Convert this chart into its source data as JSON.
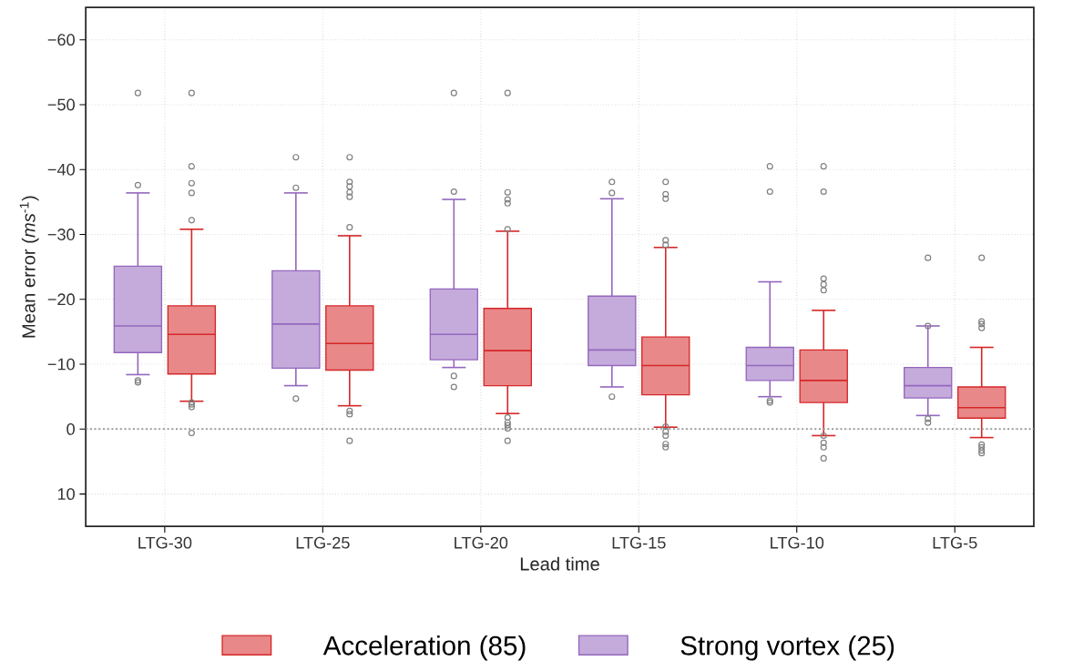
{
  "chart_data": {
    "type": "box",
    "xlabel": "Lead time",
    "ylabel": "Mean error (*ms*$^{-1}$)",
    "categories": [
      "LTG-30",
      "LTG-25",
      "LTG-20",
      "LTG-15",
      "LTG-10",
      "LTG-5"
    ],
    "ylim": [
      15,
      -65
    ],
    "yticks": [
      {
        "value": 10,
        "label": "10"
      },
      {
        "value": 0,
        "label": "0"
      },
      {
        "value": -10,
        "label": "−10"
      },
      {
        "value": -20,
        "label": "−20"
      },
      {
        "value": -30,
        "label": "−30"
      },
      {
        "value": -40,
        "label": "−40"
      },
      {
        "value": -50,
        "label": "−50"
      },
      {
        "value": -60,
        "label": "−60"
      }
    ],
    "grid": true,
    "legend": "bottom",
    "marker": "circle",
    "ref_lines": [
      {
        "axis": "y",
        "value": 0,
        "color": "#999999",
        "line_style": "dotted"
      }
    ],
    "series": [
      {
        "name": "Strong vortex (25)",
        "color": "#9467bd",
        "boxes": [
          {
            "low": -8.4,
            "q1": -11.8,
            "median": -15.9,
            "q3": -25.1,
            "high": -36.4,
            "outliers": [
              -51.8,
              -37.6,
              -7.5,
              -7.2
            ]
          },
          {
            "low": -6.7,
            "q1": -9.4,
            "median": -16.2,
            "q3": -24.4,
            "high": -36.4,
            "outliers": [
              -41.9,
              -37.2,
              -4.7
            ]
          },
          {
            "low": -9.5,
            "q1": -10.7,
            "median": -14.6,
            "q3": -21.6,
            "high": -35.4,
            "outliers": [
              -51.8,
              -36.6,
              -8.2,
              -6.5
            ]
          },
          {
            "low": -6.5,
            "q1": -9.8,
            "median": -12.2,
            "q3": -20.5,
            "high": -35.5,
            "outliers": [
              -38.1,
              -36.4,
              -5.0
            ]
          },
          {
            "low": -5.0,
            "q1": -7.5,
            "median": -9.8,
            "q3": -12.6,
            "high": -22.7,
            "outliers": [
              -40.5,
              -36.6,
              -4.4,
              -4.1
            ]
          },
          {
            "low": -2.1,
            "q1": -4.8,
            "median": -6.7,
            "q3": -9.5,
            "high": -15.9,
            "outliers": [
              -26.4,
              -15.9,
              -1.6,
              -1.0
            ]
          }
        ]
      },
      {
        "name": "Acceleration (85)",
        "color": "#d62728",
        "boxes": [
          {
            "low": -4.3,
            "q1": -8.5,
            "median": -14.6,
            "q3": -19.0,
            "high": -30.8,
            "outliers": [
              -51.8,
              -40.5,
              -37.9,
              -36.4,
              -32.2,
              -4.1,
              -3.8,
              -3.4,
              0.6
            ]
          },
          {
            "low": -3.6,
            "q1": -9.1,
            "median": -13.2,
            "q3": -19.0,
            "high": -29.8,
            "outliers": [
              -41.9,
              -38.1,
              -37.4,
              -36.5,
              -35.8,
              -31.1,
              -2.8,
              -2.3,
              1.8
            ]
          },
          {
            "low": -2.4,
            "q1": -6.7,
            "median": -12.1,
            "q3": -18.6,
            "high": -30.5,
            "outliers": [
              -51.8,
              -36.5,
              -35.4,
              -34.8,
              -30.8,
              -1.8,
              -1.0,
              -0.6,
              -0.1,
              1.8
            ]
          },
          {
            "low": -0.3,
            "q1": -5.3,
            "median": -9.8,
            "q3": -14.2,
            "high": -28.0,
            "outliers": [
              -38.1,
              -36.2,
              -35.5,
              -29.1,
              -28.4,
              -0.4,
              0.4,
              1.0,
              2.3,
              2.8
            ]
          },
          {
            "low": 1.0,
            "q1": -4.1,
            "median": -7.5,
            "q3": -12.2,
            "high": -18.3,
            "outliers": [
              -40.5,
              -36.6,
              -23.2,
              -22.3,
              -21.4,
              1.0,
              2.1,
              2.8,
              4.5
            ]
          },
          {
            "low": 1.3,
            "q1": -1.7,
            "median": -3.3,
            "q3": -6.5,
            "high": -12.6,
            "outliers": [
              -26.4,
              -16.6,
              -16.2,
              -15.6,
              2.4,
              2.8,
              3.3,
              3.7
            ]
          }
        ]
      }
    ]
  }
}
